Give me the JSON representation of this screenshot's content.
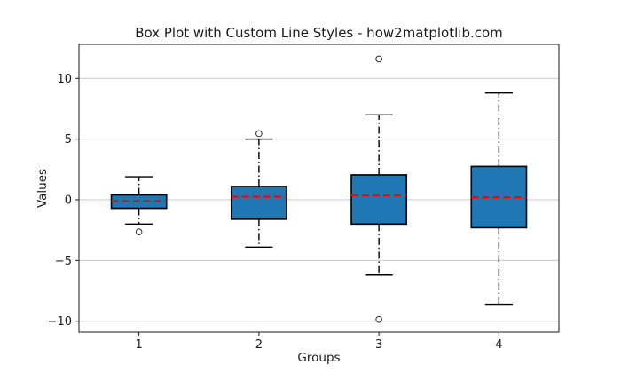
{
  "chart_data": {
    "type": "boxplot",
    "title": "Box Plot with Custom Line Styles - how2matplotlib.com",
    "xlabel": "Groups",
    "ylabel": "Values",
    "categories": [
      "1",
      "2",
      "3",
      "4"
    ],
    "groups": [
      {
        "label": "1",
        "whisker_low": -2.0,
        "q1": -0.7,
        "median": -0.1,
        "q3": 0.4,
        "whisker_high": 1.9,
        "outliers": [
          -2.65
        ]
      },
      {
        "label": "2",
        "whisker_low": -3.9,
        "q1": -1.6,
        "median": 0.25,
        "q3": 1.1,
        "whisker_high": 5.0,
        "outliers": [
          5.45
        ]
      },
      {
        "label": "3",
        "whisker_low": -6.2,
        "q1": -2.0,
        "median": 0.35,
        "q3": 2.05,
        "whisker_high": 7.0,
        "outliers": [
          11.6,
          -9.85
        ]
      },
      {
        "label": "4",
        "whisker_low": -8.6,
        "q1": -2.3,
        "median": 0.2,
        "q3": 2.75,
        "whisker_high": 8.8,
        "outliers": []
      }
    ],
    "xtick_values": [
      1,
      2,
      3,
      4
    ],
    "xtick_labels": [
      "1",
      "2",
      "3",
      "4"
    ],
    "ytick_values": [
      10,
      5,
      0,
      -5,
      -10
    ],
    "ytick_labels": [
      "10",
      "5",
      "0",
      "−5",
      "−10"
    ],
    "xlim": [
      0.5,
      4.5
    ],
    "ylim": [
      -10.9,
      12.8
    ],
    "grid": "horizontal",
    "legend": "none",
    "styles": {
      "box_fill": "#1f77b4",
      "box_edge": "#000000",
      "box_edge_width": 1.6,
      "box_width": 0.46,
      "median_color": "#ff0000",
      "median_width": 2.2,
      "median_dash": "8 4",
      "whisker_color": "#000000",
      "whisker_width": 1.4,
      "whisker_dash": "8 3 1.5 3",
      "cap_color": "#000000",
      "cap_width_frac": 0.23,
      "flier_edge": "#2b2b2b",
      "flier_radius": 3.3,
      "grid_color": "#c9c9c9",
      "spine_color": "#1a1a1a",
      "text_color": "#1a1a1a"
    }
  }
}
